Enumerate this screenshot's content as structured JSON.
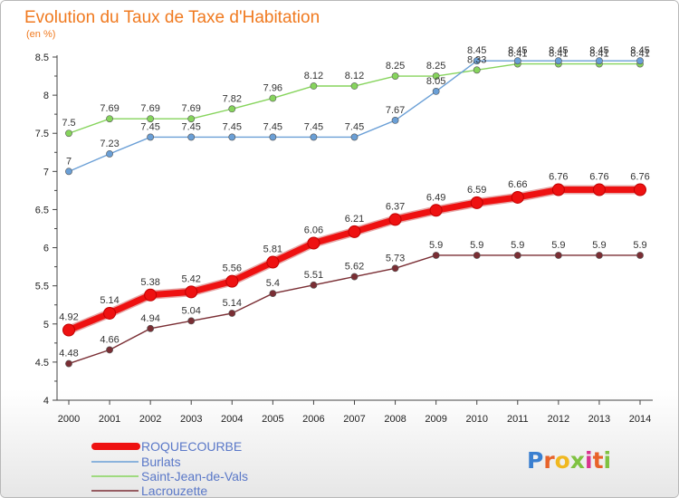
{
  "chart_data": {
    "type": "line",
    "title": "Evolution du Taux de Taxe d'Habitation",
    "subtitle": "(en %)",
    "x": [
      "2000",
      "2001",
      "2002",
      "2003",
      "2004",
      "2005",
      "2006",
      "2007",
      "2008",
      "2009",
      "2010",
      "2011",
      "2012",
      "2013",
      "2014"
    ],
    "ylim": [
      4,
      8.5
    ],
    "yticks": [
      "4",
      "4.5",
      "5",
      "5.5",
      "6",
      "6.5",
      "7",
      "7.5",
      "8",
      "8.5"
    ],
    "grid": false,
    "legend_position": "bottom-left",
    "series": [
      {
        "name": "ROQUECOURBE",
        "color": "#ee1111",
        "labels": [
          "4.92",
          "5.14",
          "5.38",
          "5.42",
          "5.56",
          "5.81",
          "6.06",
          "6.21",
          "6.37",
          "6.49",
          "6.59",
          "6.66",
          "6.76",
          "6.76",
          "6.76"
        ],
        "values": [
          4.92,
          5.14,
          5.38,
          5.42,
          5.56,
          5.81,
          6.06,
          6.21,
          6.37,
          6.49,
          6.59,
          6.66,
          6.76,
          6.76,
          6.76
        ]
      },
      {
        "name": "Burlats",
        "color": "#6a9fd6",
        "labels": [
          "7",
          "7.23",
          "7.45",
          "7.45",
          "7.45",
          "7.45",
          "7.45",
          "7.45",
          "7.67",
          "8.05",
          "8.45",
          "8.45",
          "8.45",
          "8.45",
          "8.45"
        ],
        "values": [
          7,
          7.23,
          7.45,
          7.45,
          7.45,
          7.45,
          7.45,
          7.45,
          7.67,
          8.05,
          8.45,
          8.45,
          8.45,
          8.45,
          8.45
        ]
      },
      {
        "name": "Saint-Jean-de-Vals",
        "color": "#86d45c",
        "labels": [
          "7.5",
          "7.69",
          "7.69",
          "7.69",
          "7.82",
          "7.96",
          "8.12",
          "8.12",
          "8.25",
          "8.25",
          "8.33",
          "8.41",
          "8.41",
          "8.41",
          "8.41"
        ],
        "values": [
          7.5,
          7.69,
          7.69,
          7.69,
          7.82,
          7.96,
          8.12,
          8.12,
          8.25,
          8.25,
          8.33,
          8.41,
          8.41,
          8.41,
          8.41
        ]
      },
      {
        "name": "Lacrouzette",
        "color": "#7a2e34",
        "labels": [
          "4.48",
          "4.66",
          "4.94",
          "5.04",
          "5.14",
          "5.4",
          "5.51",
          "5.62",
          "5.73",
          "5.9",
          "5.9",
          "5.9",
          "5.9",
          "5.9",
          "5.9"
        ],
        "values": [
          4.48,
          4.66,
          4.94,
          5.04,
          5.14,
          5.4,
          5.51,
          5.62,
          5.73,
          5.9,
          5.9,
          5.9,
          5.9,
          5.9,
          5.9
        ]
      }
    ]
  },
  "logo": {
    "text": "Proxiti",
    "letter_colors": [
      "#3a7fd0",
      "#e8632a",
      "#f0b820",
      "#7fc241",
      "#d9338f",
      "#e8632a",
      "#7fc241"
    ]
  }
}
